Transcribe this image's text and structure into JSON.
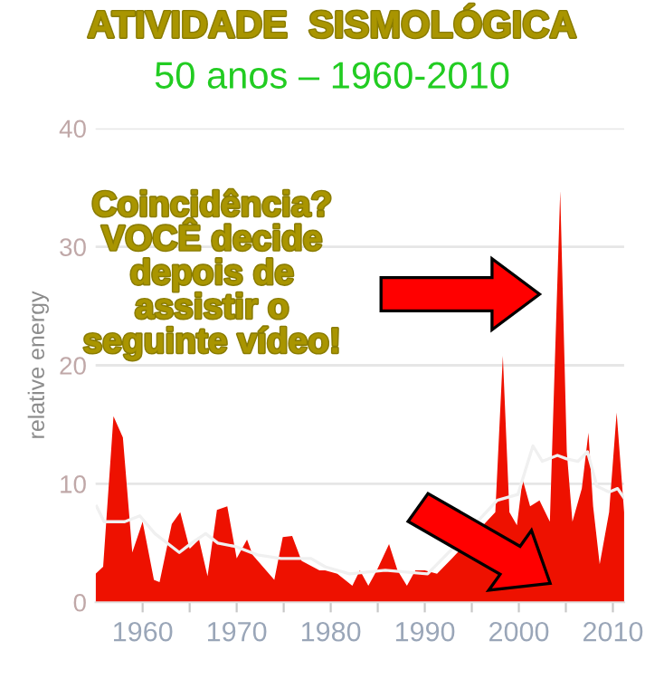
{
  "chart_data": {
    "type": "area",
    "title": "ATIVIDADE  SISMOLÓGICA",
    "subtitle": "50 anos – 1960-2010",
    "ylabel": "relative energy",
    "annotations": [
      "Coincidência?\nVOCÊ decide\ndepois de\nassistir o\nseguinte vídeo!"
    ],
    "series": [
      {
        "color": "#ee1100",
        "x": [
          1955.0,
          1955.8,
          1956.9,
          1957.9,
          1958.9,
          1960.0,
          1961.2,
          1961.8,
          1963.1,
          1964.0,
          1965.0,
          1966.0,
          1966.9,
          1967.9,
          1969.0,
          1970.0,
          1971.1,
          1971.7,
          1974.0,
          1974.9,
          1975.9,
          1976.9,
          1978.8,
          1979.4,
          1980.7,
          1982.3,
          1983.1,
          1984.0,
          1984.9,
          1986.2,
          1987.1,
          1988.1,
          1989.0,
          1990.0,
          1991.3,
          1992.9,
          1997.5,
          1998.3,
          1999.0,
          1999.8,
          2000.4,
          2001.2,
          2002.2,
          2003.3,
          2004.4,
          2005.1,
          2005.7,
          2006.7,
          2007.4,
          2007.9,
          2008.6,
          2009.6,
          2010.4,
          2011.2
        ],
        "values": [
          2.4,
          3.0,
          15.7,
          13.9,
          4.2,
          6.8,
          1.9,
          1.7,
          6.6,
          7.6,
          4.5,
          5.3,
          2.2,
          7.8,
          8.1,
          3.7,
          5.3,
          4.0,
          1.9,
          5.5,
          5.6,
          3.5,
          2.7,
          2.7,
          2.4,
          1.4,
          2.7,
          1.4,
          2.7,
          4.9,
          2.7,
          1.4,
          2.7,
          2.7,
          2.4,
          3.7,
          7.6,
          20.8,
          7.6,
          6.5,
          10.4,
          8.1,
          8.6,
          6.8,
          34.7,
          12.7,
          6.8,
          9.6,
          14.3,
          8.1,
          3.2,
          7.6,
          16.0,
          7.6
        ]
      },
      {
        "type": "line",
        "color": "#f0f0f0",
        "x": [
          1955.1,
          1955.9,
          1958.1,
          1959.7,
          1961.3,
          1963.9,
          1965.2,
          1966.7,
          1968.0,
          1969.9,
          1972.2,
          1974.7,
          1977.9,
          1979.4,
          1982.0,
          1985.8,
          1990.3,
          1992.9,
          1997.7,
          1999.9,
          2001.5,
          2002.5,
          2004.1,
          2005.1,
          2006.3,
          2007.3,
          2008.3,
          2009.6,
          2010.5,
          2011.2
        ],
        "values": [
          8.1,
          6.8,
          6.8,
          7.3,
          5.8,
          4.2,
          5.0,
          5.8,
          5.0,
          4.7,
          4.0,
          3.7,
          3.7,
          3.0,
          2.4,
          2.7,
          2.4,
          4.5,
          8.6,
          9.1,
          13.2,
          11.9,
          12.4,
          12.1,
          11.9,
          12.7,
          9.8,
          9.3,
          9.6,
          8.8
        ]
      }
    ],
    "xlim": [
      1955,
      2011.2
    ],
    "xticks": [
      1960,
      {
        "value": 1965,
        "label": null
      },
      1970,
      {
        "value": 1975,
        "label": null
      },
      1980,
      {
        "value": 1985,
        "label": null
      },
      1990,
      {
        "value": 1995,
        "label": null
      },
      2000,
      {
        "value": 2005,
        "label": null
      },
      2010
    ],
    "ylim": [
      0,
      40
    ],
    "yticks": [
      0,
      10,
      20,
      30,
      40
    ],
    "grid": "y",
    "legend": false
  }
}
